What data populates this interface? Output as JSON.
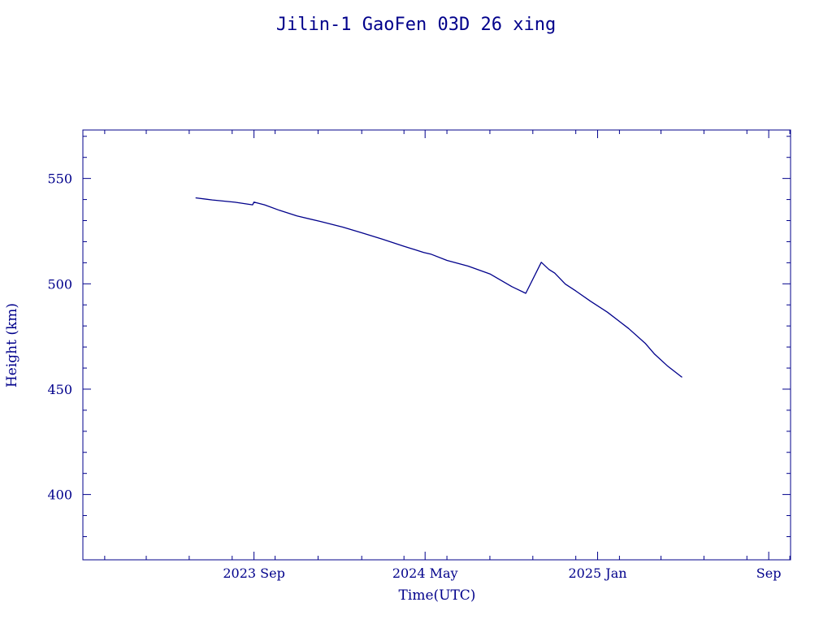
{
  "chart_data": {
    "type": "line",
    "title": "Jilin-1 GaoFen 03D 26 xing",
    "xlabel": "Time(UTC)",
    "ylabel": "Height (km)",
    "x_axis_kind": "date",
    "xlim": [
      "2023-01-01",
      "2025-10-02"
    ],
    "ylim": [
      369,
      573
    ],
    "x_ticks": [
      {
        "value": "2023-09-01",
        "label": "2023 Sep"
      },
      {
        "value": "2024-05-01",
        "label": "2024 May"
      },
      {
        "value": "2025-01-01",
        "label": "2025 Jan"
      },
      {
        "value": "2025-09-01",
        "label": "Sep"
      }
    ],
    "y_ticks": [
      {
        "value": 400,
        "label": "400"
      },
      {
        "value": 450,
        "label": "450"
      },
      {
        "value": 500,
        "label": "500"
      },
      {
        "value": 550,
        "label": "550"
      }
    ],
    "grid": false,
    "legend": "none",
    "colors": {
      "line": "#00008b",
      "frame": "#00008b",
      "text": "#00008b",
      "background": "#ffffff"
    },
    "series": [
      {
        "x": [
          "2023-06-10",
          "2023-07-04",
          "2023-08-05",
          "2023-08-30",
          "2023-09-01",
          "2023-09-16",
          "2023-10-07",
          "2023-11-01",
          "2023-12-04",
          "2024-01-05",
          "2024-02-01",
          "2024-03-01",
          "2024-04-01",
          "2024-04-29",
          "2024-05-09",
          "2024-06-01",
          "2024-07-01",
          "2024-08-01",
          "2024-09-01",
          "2024-09-21",
          "2024-10-13",
          "2024-10-24",
          "2024-11-01",
          "2024-11-16",
          "2024-12-01",
          "2024-12-22",
          "2025-01-15",
          "2025-02-14",
          "2025-03-10",
          "2025-03-23",
          "2025-04-10",
          "2025-05-01"
        ],
        "y": [
          540.8,
          539.8,
          538.7,
          537.5,
          538.8,
          537.5,
          534.9,
          532.2,
          529.6,
          526.9,
          524.2,
          521.2,
          517.8,
          514.9,
          514.1,
          511.1,
          508.4,
          504.7,
          498.7,
          495.5,
          510.2,
          506.8,
          505.1,
          499.9,
          496.6,
          491.7,
          486.5,
          478.8,
          471.6,
          466.6,
          461.1,
          455.6
        ]
      }
    ]
  }
}
